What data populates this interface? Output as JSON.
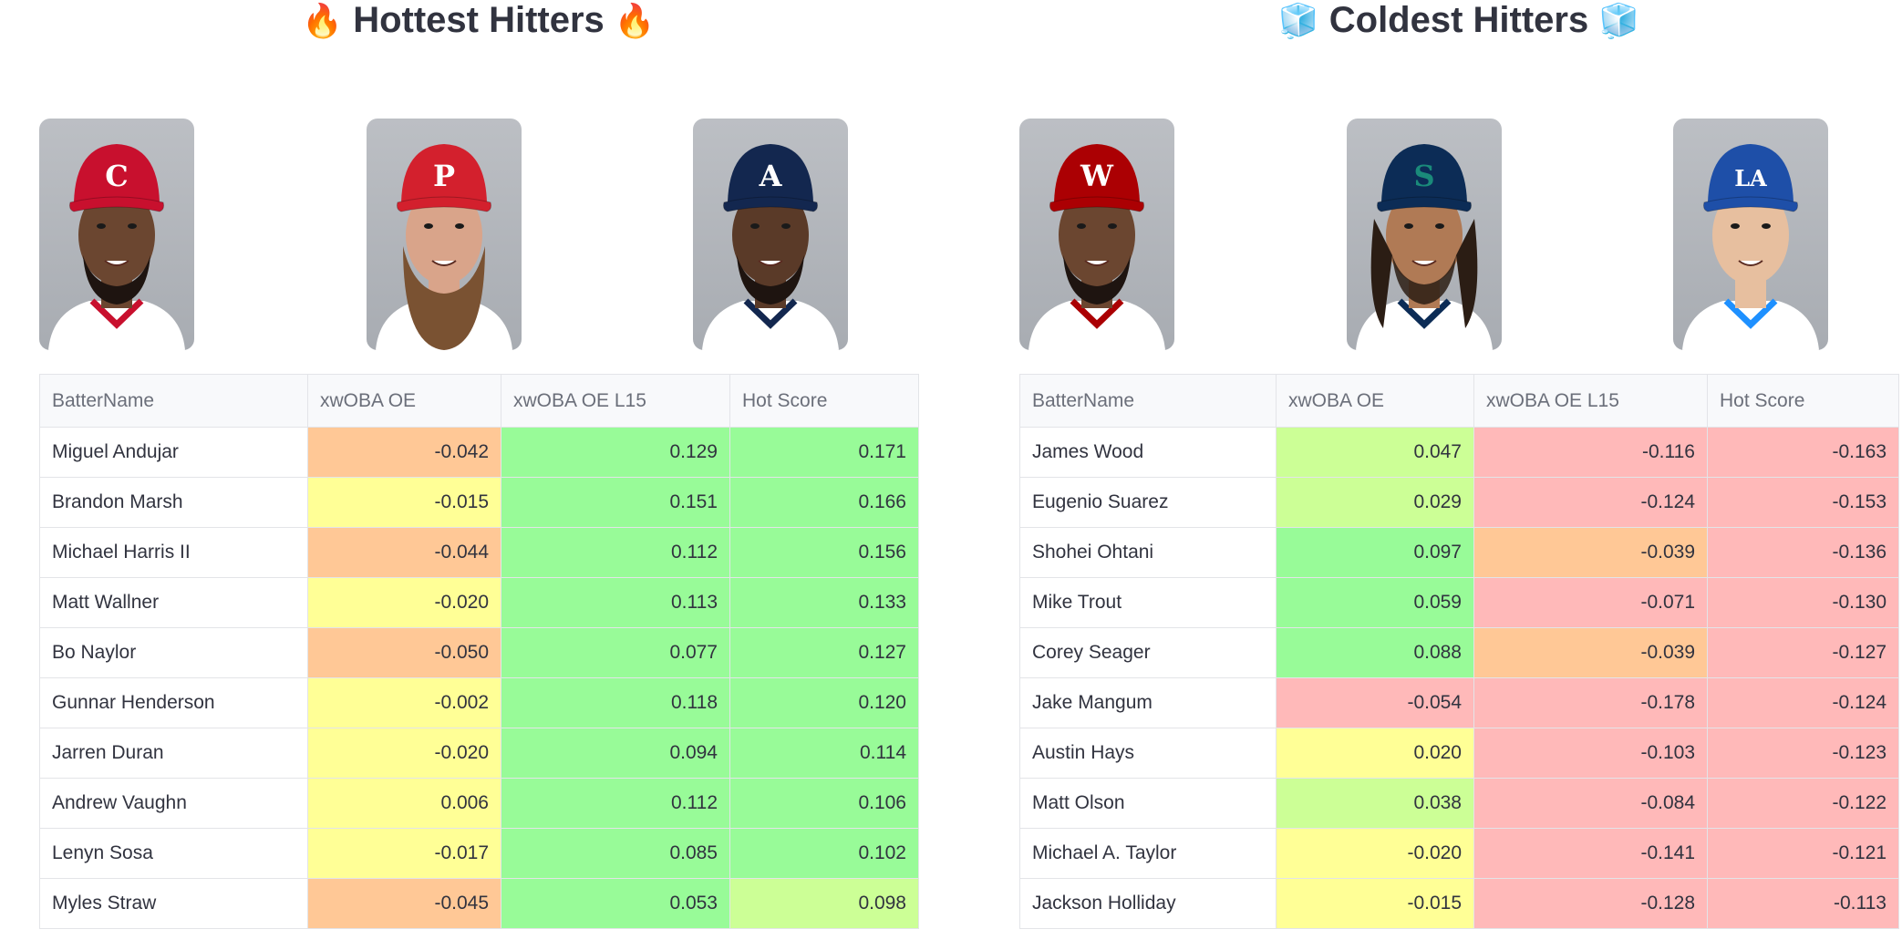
{
  "hot": {
    "title": "Hottest Hitters",
    "emoji": "🔥",
    "photos": [
      {
        "logo": "C",
        "cap": "#c8102e",
        "logo_color": "#ffffff",
        "jersey": "#ffffff",
        "trim": "#c8102e",
        "skin": "#6b4630",
        "beard": "short"
      },
      {
        "logo": "P",
        "cap": "#d3202d",
        "logo_color": "#ffffff",
        "jersey": "#ffffff",
        "trim": "#d3202d",
        "skin": "#d9a48a",
        "beard": "long"
      },
      {
        "logo": "A",
        "cap": "#13274f",
        "logo_color": "#ffffff",
        "jersey": "#ffffff",
        "trim": "#13274f",
        "skin": "#5a3a28",
        "beard": "short"
      }
    ],
    "columns": [
      "BatterName",
      "xwOBA OE",
      "xwOBA OE L15",
      "Hot Score"
    ],
    "rows": [
      {
        "name": "Miguel Andujar",
        "oe": "-0.042",
        "l15": "0.129",
        "score": "0.171",
        "colors": [
          "#ffc896",
          "#98fb98",
          "#98fb98"
        ]
      },
      {
        "name": "Brandon Marsh",
        "oe": "-0.015",
        "l15": "0.151",
        "score": "0.166",
        "colors": [
          "#ffff96",
          "#98fb98",
          "#98fb98"
        ]
      },
      {
        "name": "Michael Harris II",
        "oe": "-0.044",
        "l15": "0.112",
        "score": "0.156",
        "colors": [
          "#ffc896",
          "#98fb98",
          "#98fb98"
        ]
      },
      {
        "name": "Matt Wallner",
        "oe": "-0.020",
        "l15": "0.113",
        "score": "0.133",
        "colors": [
          "#ffff96",
          "#98fb98",
          "#98fb98"
        ]
      },
      {
        "name": "Bo Naylor",
        "oe": "-0.050",
        "l15": "0.077",
        "score": "0.127",
        "colors": [
          "#ffc896",
          "#98fb98",
          "#98fb98"
        ]
      },
      {
        "name": "Gunnar Henderson",
        "oe": "-0.002",
        "l15": "0.118",
        "score": "0.120",
        "colors": [
          "#ffff96",
          "#98fb98",
          "#98fb98"
        ]
      },
      {
        "name": "Jarren Duran",
        "oe": "-0.020",
        "l15": "0.094",
        "score": "0.114",
        "colors": [
          "#ffff96",
          "#98fb98",
          "#98fb98"
        ]
      },
      {
        "name": "Andrew Vaughn",
        "oe": "0.006",
        "l15": "0.112",
        "score": "0.106",
        "colors": [
          "#ffff96",
          "#98fb98",
          "#98fb98"
        ]
      },
      {
        "name": "Lenyn Sosa",
        "oe": "-0.017",
        "l15": "0.085",
        "score": "0.102",
        "colors": [
          "#ffff96",
          "#98fb98",
          "#98fb98"
        ]
      },
      {
        "name": "Myles Straw",
        "oe": "-0.045",
        "l15": "0.053",
        "score": "0.098",
        "colors": [
          "#ffc896",
          "#98fb98",
          "#ccff96"
        ]
      }
    ]
  },
  "cold": {
    "title": "Coldest Hitters",
    "emoji": "🧊",
    "photos": [
      {
        "logo": "W",
        "cap": "#ab0003",
        "logo_color": "#ffffff",
        "jersey": "#ffffff",
        "trim": "#ab0003",
        "skin": "#6b4630",
        "beard": "short"
      },
      {
        "logo": "S",
        "cap": "#0c2c56",
        "logo_color": "#1a8a7a",
        "jersey": "#ffffff",
        "trim": "#0c2c56",
        "skin": "#b07a55",
        "beard": "goatee"
      },
      {
        "logo": "LA",
        "cap": "#1e4fa8",
        "logo_color": "#ffffff",
        "jersey": "#ffffff",
        "trim": "#1e90ff",
        "skin": "#e7bf9f",
        "beard": "none"
      }
    ],
    "columns": [
      "BatterName",
      "xwOBA OE",
      "xwOBA OE L15",
      "Hot Score"
    ],
    "rows": [
      {
        "name": "James Wood",
        "oe": "0.047",
        "l15": "-0.116",
        "score": "-0.163",
        "colors": [
          "#ccff96",
          "#ffb9b9",
          "#ffb9b9"
        ]
      },
      {
        "name": "Eugenio Suarez",
        "oe": "0.029",
        "l15": "-0.124",
        "score": "-0.153",
        "colors": [
          "#ccff96",
          "#ffb9b9",
          "#ffb9b9"
        ]
      },
      {
        "name": "Shohei Ohtani",
        "oe": "0.097",
        "l15": "-0.039",
        "score": "-0.136",
        "colors": [
          "#98fb98",
          "#ffc896",
          "#ffb9b9"
        ]
      },
      {
        "name": "Mike Trout",
        "oe": "0.059",
        "l15": "-0.071",
        "score": "-0.130",
        "colors": [
          "#98fb98",
          "#ffb9b9",
          "#ffb9b9"
        ]
      },
      {
        "name": "Corey Seager",
        "oe": "0.088",
        "l15": "-0.039",
        "score": "-0.127",
        "colors": [
          "#98fb98",
          "#ffc896",
          "#ffb9b9"
        ]
      },
      {
        "name": "Jake Mangum",
        "oe": "-0.054",
        "l15": "-0.178",
        "score": "-0.124",
        "colors": [
          "#ffb9b9",
          "#ffb9b9",
          "#ffb9b9"
        ]
      },
      {
        "name": "Austin Hays",
        "oe": "0.020",
        "l15": "-0.103",
        "score": "-0.123",
        "colors": [
          "#ffff96",
          "#ffb9b9",
          "#ffb9b9"
        ]
      },
      {
        "name": "Matt Olson",
        "oe": "0.038",
        "l15": "-0.084",
        "score": "-0.122",
        "colors": [
          "#ccff96",
          "#ffb9b9",
          "#ffb9b9"
        ]
      },
      {
        "name": "Michael A. Taylor",
        "oe": "-0.020",
        "l15": "-0.141",
        "score": "-0.121",
        "colors": [
          "#ffff96",
          "#ffb9b9",
          "#ffb9b9"
        ]
      },
      {
        "name": "Jackson Holliday",
        "oe": "-0.015",
        "l15": "-0.128",
        "score": "-0.113",
        "colors": [
          "#ffff96",
          "#ffb9b9",
          "#ffb9b9"
        ]
      }
    ]
  }
}
